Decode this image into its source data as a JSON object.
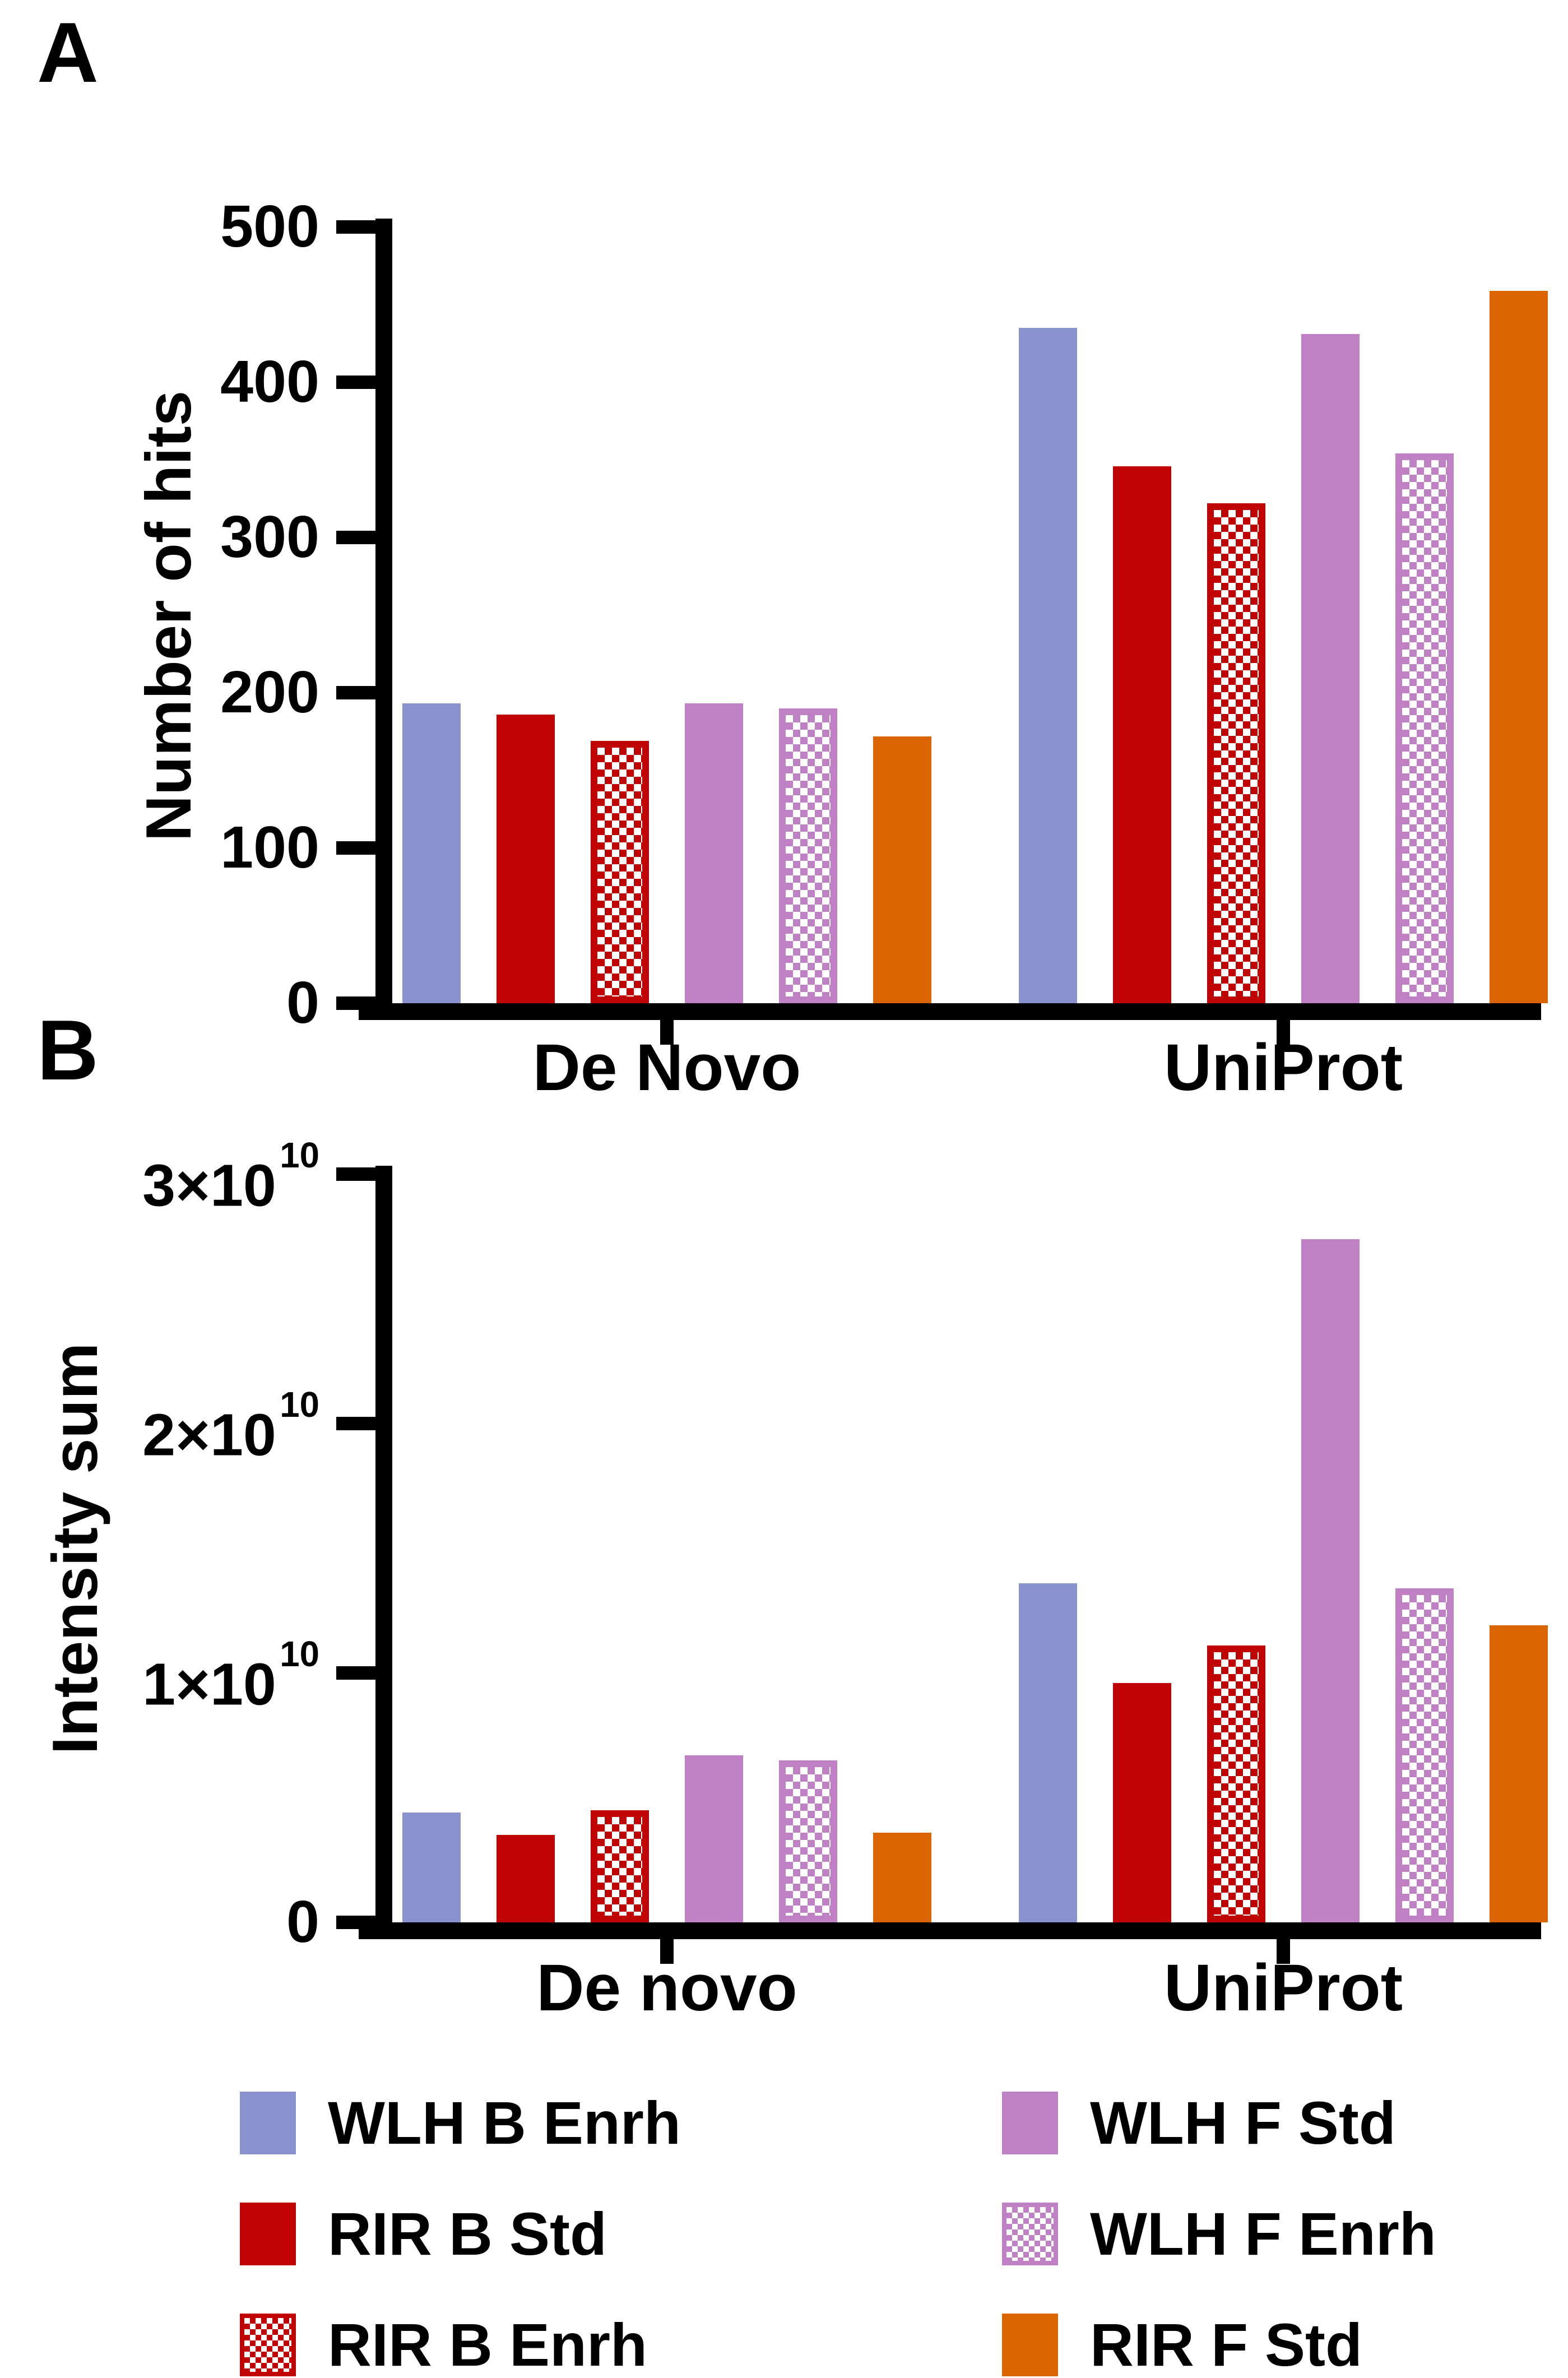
{
  "figure": {
    "panel_a_label": "A",
    "panel_b_label": "B"
  },
  "chart_data": [
    {
      "id": "A",
      "type": "bar",
      "title": "",
      "xlabel": "",
      "ylabel": "Number of hits",
      "categories": [
        "De Novo",
        "UniProt"
      ],
      "series": [
        {
          "name": "WLH B Enrh",
          "color": "#8991ce",
          "pattern": "solid",
          "values": [
            193,
            435
          ]
        },
        {
          "name": "RIR B Std",
          "color": "#c00404",
          "pattern": "solid",
          "values": [
            186,
            346
          ]
        },
        {
          "name": "RIR B Enrh",
          "color": "#c00404",
          "pattern": "checker",
          "values": [
            169,
            322
          ]
        },
        {
          "name": "WLH F Std",
          "color": "#c081c4",
          "pattern": "solid",
          "values": [
            193,
            431
          ]
        },
        {
          "name": "WLH F Enrh",
          "color": "#c081c4",
          "pattern": "checker",
          "values": [
            190,
            354
          ]
        },
        {
          "name": "RIR F Std",
          "color": "#da6400",
          "pattern": "solid",
          "values": [
            172,
            459
          ]
        }
      ],
      "ylim": [
        0,
        500
      ],
      "yticks": [
        {
          "value": 0,
          "text": "0"
        },
        {
          "value": 100,
          "text": "100"
        },
        {
          "value": 200,
          "text": "200"
        },
        {
          "value": 300,
          "text": "300"
        },
        {
          "value": 400,
          "text": "400"
        },
        {
          "value": 500,
          "text": "500"
        }
      ],
      "grid": false,
      "legend_position": "bottom"
    },
    {
      "id": "B",
      "type": "bar",
      "title": "",
      "xlabel": "",
      "ylabel": "Intensity sum",
      "categories": [
        "De novo",
        "UniProt"
      ],
      "series": [
        {
          "name": "WLH B Enrh",
          "color": "#8991ce",
          "pattern": "solid",
          "values": [
            4400000000.0,
            13600000000.0
          ]
        },
        {
          "name": "RIR B Std",
          "color": "#c00404",
          "pattern": "solid",
          "values": [
            3500000000.0,
            9600000000.0
          ]
        },
        {
          "name": "RIR B Enrh",
          "color": "#c00404",
          "pattern": "checker",
          "values": [
            4500000000.0,
            11100000000.0
          ]
        },
        {
          "name": "WLH F Std",
          "color": "#c081c4",
          "pattern": "solid",
          "values": [
            6700000000.0,
            27400000000.0
          ]
        },
        {
          "name": "WLH F Enrh",
          "color": "#c081c4",
          "pattern": "checker",
          "values": [
            6500000000.0,
            13400000000.0
          ]
        },
        {
          "name": "RIR F Std",
          "color": "#da6400",
          "pattern": "solid",
          "values": [
            3600000000.0,
            11900000000.0
          ]
        }
      ],
      "ylim": [
        0,
        30000000000.0
      ],
      "yticks": [
        {
          "value": 0,
          "text": "0"
        },
        {
          "value": 10000000000.0,
          "text": "1×10",
          "sup": "10"
        },
        {
          "value": 20000000000.0,
          "text": "2×10",
          "sup": "10"
        },
        {
          "value": 30000000000.0,
          "text": "3×10",
          "sup": "10"
        }
      ],
      "grid": false,
      "legend_position": "bottom"
    }
  ],
  "legend": {
    "columns": [
      [
        {
          "label": "WLH B Enrh",
          "color": "#8991ce",
          "pattern": "solid"
        },
        {
          "label": "RIR B Std",
          "color": "#c00404",
          "pattern": "solid"
        },
        {
          "label": "RIR B Enrh",
          "color": "#c00404",
          "pattern": "checker"
        }
      ],
      [
        {
          "label": "WLH F Std",
          "color": "#c081c4",
          "pattern": "solid"
        },
        {
          "label": "WLH F Enrh",
          "color": "#c081c4",
          "pattern": "checker"
        },
        {
          "label": "RIR F Std",
          "color": "#da6400",
          "pattern": "solid"
        }
      ]
    ]
  }
}
